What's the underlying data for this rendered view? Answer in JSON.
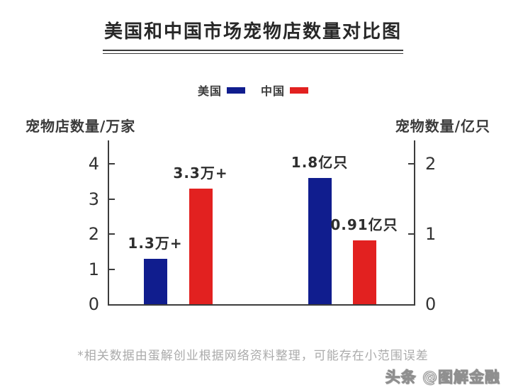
{
  "title": "美国和中国市场宠物店数量对比图",
  "axes": {
    "left_title": "宠物店数量/万家",
    "right_title": "宠物数量/亿只"
  },
  "chart_data": {
    "type": "bar",
    "title": "美国和中国市场宠物店数量对比图",
    "categories": [
      "宠物店数量(万家)",
      "宠物数量(亿只)"
    ],
    "series": [
      {
        "name": "美国",
        "color": "#101d8e",
        "values": [
          1.3,
          1.8
        ],
        "value_labels": [
          "1.3万+",
          "1.8亿只"
        ]
      },
      {
        "name": "中国",
        "color": "#e22120",
        "values": [
          3.3,
          0.91
        ],
        "value_labels": [
          "3.3万+",
          "0.91亿只"
        ]
      }
    ],
    "left_axis": {
      "title": "宠物店数量/万家",
      "unit": "万家",
      "range": [
        0,
        4
      ],
      "ticks": [
        0,
        1,
        2,
        3,
        4
      ],
      "applies_to_category": 0
    },
    "right_axis": {
      "title": "宠物数量/亿只",
      "unit": "亿只",
      "range": [
        0,
        2
      ],
      "ticks": [
        0,
        1,
        2
      ],
      "applies_to_category": 1
    },
    "grid": false,
    "legend_position": "top",
    "note": "*相关数据由蛋解创业根据网络资料整理，可能存在小范围误差"
  },
  "footer": {
    "note": "*相关数据由蛋解创业根据网络资料整理，可能存在小范围误差"
  },
  "watermark": {
    "text": "头条 @图解金融"
  },
  "colors": {
    "us_blue": "#101d8e",
    "cn_red": "#e22120",
    "axis_line": "#3c3c3c",
    "title_text": "#282828",
    "footer_text": "#ababab"
  }
}
